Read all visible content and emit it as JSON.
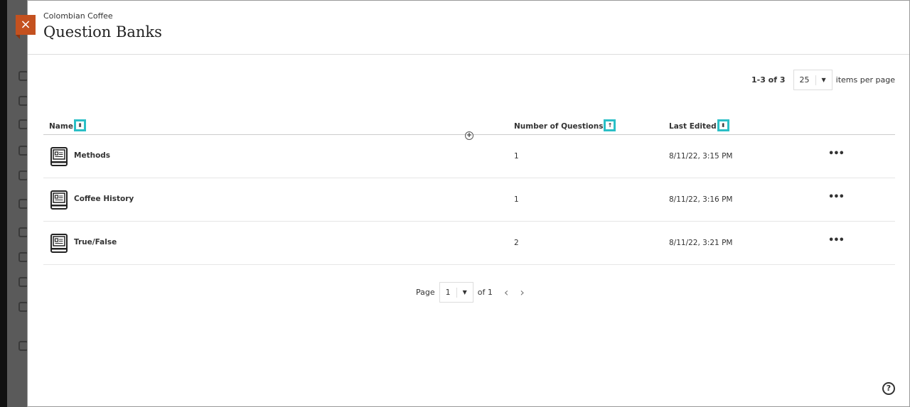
{
  "header": {
    "course": "Colombian Coffee",
    "title": "Question Banks",
    "close_icon": "×"
  },
  "pagination_top": {
    "range": "1-3 of 3",
    "per_page": "25",
    "per_page_label": "items per page"
  },
  "table": {
    "columns": [
      {
        "label": "Name",
        "sort": "unsorted"
      },
      {
        "label": "Number of Questions",
        "sort": "ascending"
      },
      {
        "label": "Last Edited",
        "sort": "unsorted"
      }
    ],
    "rows": [
      {
        "name": "Methods",
        "questions": "1",
        "edited": "8/11/22, 3:15 PM"
      },
      {
        "name": "Coffee History",
        "questions": "1",
        "edited": "8/11/22, 3:16 PM"
      },
      {
        "name": "True/False",
        "questions": "2",
        "edited": "8/11/22, 3:21 PM"
      }
    ]
  },
  "pagination_bottom": {
    "page_label": "Page",
    "page": "1",
    "of_label": "of 1"
  },
  "colors": {
    "accent_close": "#c4511f",
    "sort_highlight": "#2bbfc6"
  }
}
